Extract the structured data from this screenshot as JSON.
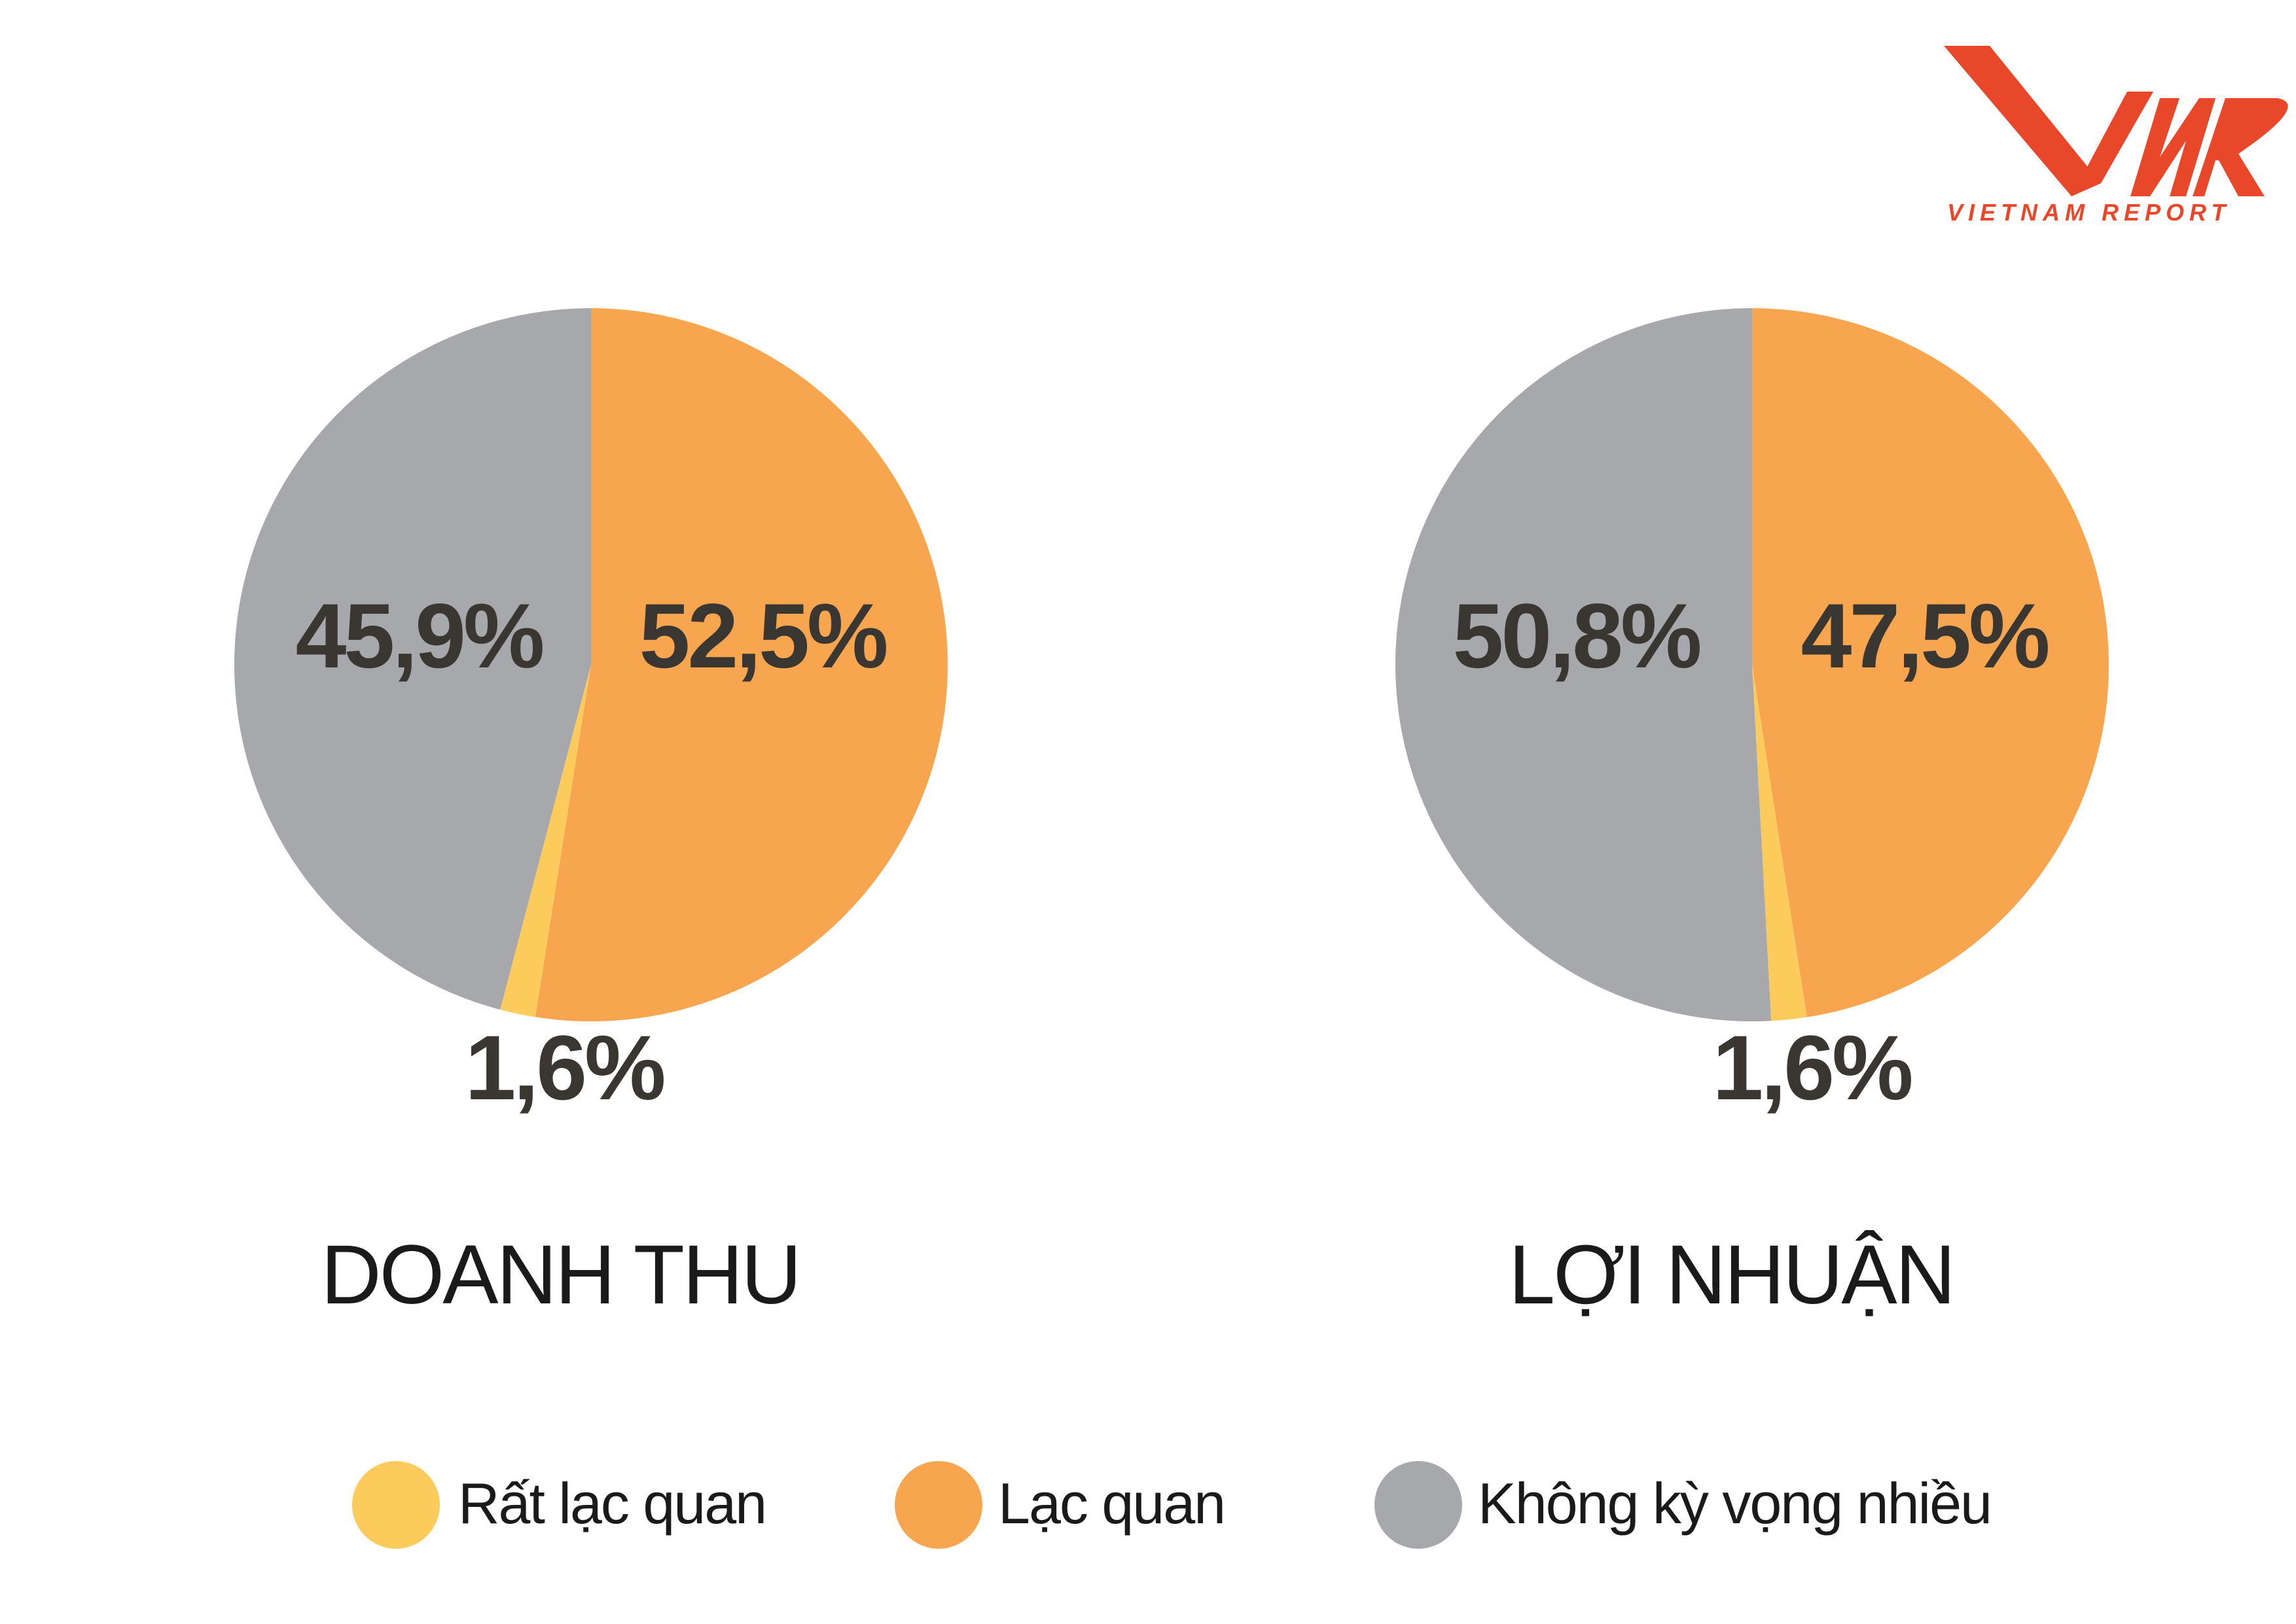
{
  "logo": {
    "text": "VIETNAM REPORT",
    "mark": "VNR",
    "color": "#e8472a"
  },
  "colors": {
    "rat_lac_quan": "#fccb5c",
    "lac_quan": "#f7a64f",
    "khong_ky_vong": "#a7a8ab"
  },
  "chart_data": [
    {
      "type": "pie",
      "title": "DOANH THU",
      "slices": [
        {
          "name": "Lạc quan",
          "value": 52.5,
          "label": "52,5%",
          "color": "#f7a64f"
        },
        {
          "name": "Rất lạc quan",
          "value": 1.6,
          "label": "1,6%",
          "color": "#fccb5c"
        },
        {
          "name": "Không kỳ vọng nhiều",
          "value": 45.9,
          "label": "45,9%",
          "color": "#a7a8ab"
        }
      ]
    },
    {
      "type": "pie",
      "title": "LỢI NHUẬN",
      "slices": [
        {
          "name": "Lạc quan",
          "value": 47.5,
          "label": "47,5%",
          "color": "#f7a64f"
        },
        {
          "name": "Rất lạc quan",
          "value": 1.6,
          "label": "1,6%",
          "color": "#fccb5c"
        },
        {
          "name": "Không kỳ vọng nhiều",
          "value": 50.8,
          "label": "50,8%",
          "color": "#a7a8ab"
        }
      ]
    }
  ],
  "legend": [
    {
      "label": "Rất lạc quan",
      "color": "#fccb5c"
    },
    {
      "label": "Lạc quan",
      "color": "#f7a64f"
    },
    {
      "label": "Không kỳ vọng nhiều",
      "color": "#a7a8ab"
    }
  ]
}
